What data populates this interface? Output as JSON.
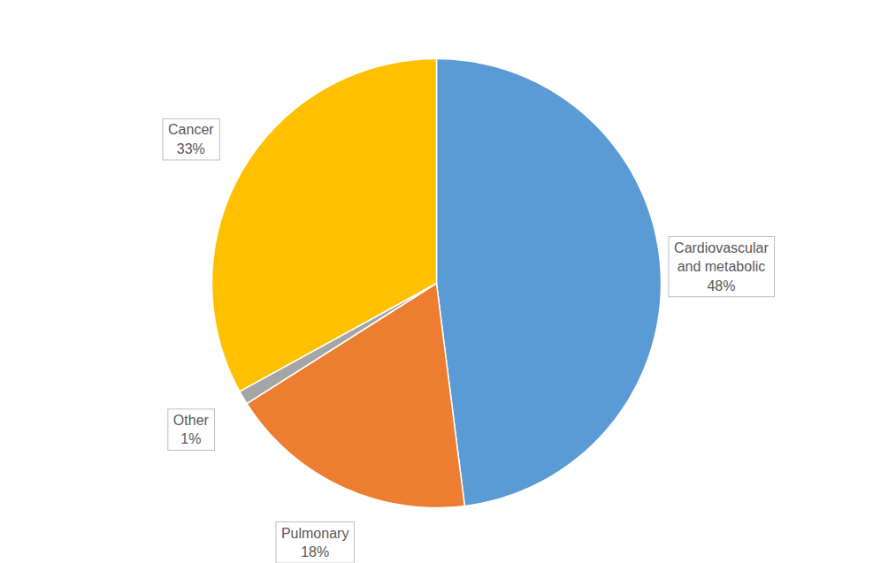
{
  "chart_data": {
    "type": "pie",
    "categories": [
      "Cardiovascular and metabolic",
      "Pulmonary",
      "Other",
      "Cancer"
    ],
    "values": [
      48,
      18,
      1,
      33
    ],
    "value_labels": [
      "48%",
      "18%",
      "1%",
      "33%"
    ],
    "colors": [
      "#5b9bd5",
      "#ed7d31",
      "#a5a5a5",
      "#ffc000"
    ],
    "data_labels": true
  }
}
